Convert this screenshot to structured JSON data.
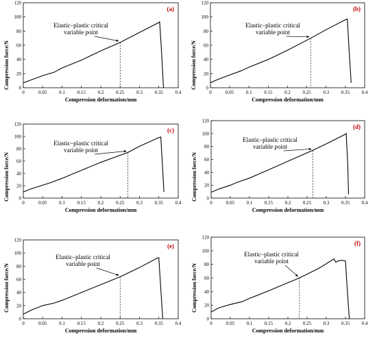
{
  "chart_data": [
    {
      "type": "line",
      "panel_label": "(a)",
      "xlabel": "Compression deformation/mm",
      "ylabel": "Compression force/N",
      "xlim": [
        0,
        0.4
      ],
      "ylim": [
        0,
        120
      ],
      "xticks": [
        "0",
        "0.05",
        "0.1",
        "0.15",
        "0.2",
        "0.25",
        "0.3",
        "0.35",
        "0.4"
      ],
      "yticks": [
        "0",
        "20",
        "40",
        "60",
        "80",
        "100",
        "120"
      ],
      "annotation": {
        "line1": "Elastic–plastic critical",
        "line2": "variable point",
        "x": 0.25,
        "y": 64
      },
      "x": [
        0,
        0.02,
        0.05,
        0.08,
        0.1,
        0.15,
        0.2,
        0.25,
        0.3,
        0.35,
        0.352,
        0.356,
        0.36,
        0.362
      ],
      "y": [
        7,
        11,
        17,
        22,
        28,
        39,
        52,
        64,
        78,
        92,
        93,
        60,
        20,
        0
      ]
    },
    {
      "type": "line",
      "panel_label": "(b)",
      "xlabel": "Compression deformation/mm",
      "ylabel": "Compression force/N",
      "xlim": [
        0,
        0.4
      ],
      "ylim": [
        0,
        120
      ],
      "xticks": [
        "0",
        "0.05",
        "0.1",
        "0.15",
        "0.2",
        "0.25",
        "0.3",
        "0.35",
        "0.4"
      ],
      "yticks": [
        "0",
        "20",
        "40",
        "60",
        "80",
        "100",
        "120"
      ],
      "annotation": {
        "line1": "Elastic–plastic critical",
        "line2": "variable point",
        "x": 0.26,
        "y": 70
      },
      "x": [
        0,
        0.02,
        0.05,
        0.08,
        0.1,
        0.15,
        0.2,
        0.26,
        0.3,
        0.35,
        0.355,
        0.36,
        0.365
      ],
      "y": [
        7,
        12,
        18,
        24,
        29,
        40,
        53,
        70,
        82,
        96,
        97,
        50,
        7
      ]
    },
    {
      "type": "line",
      "panel_label": "(c)",
      "xlabel": "Compression deformation/mm",
      "ylabel": "Compression force/N",
      "xlim": [
        0,
        0.4
      ],
      "ylim": [
        0,
        120
      ],
      "xticks": [
        "0",
        "0.05",
        "0.1",
        "0.15",
        "0.2",
        "0.25",
        "0.3",
        "0.35",
        "0.4"
      ],
      "yticks": [
        "0",
        "20",
        "40",
        "60",
        "80",
        "100",
        "120"
      ],
      "annotation": {
        "line1": "Elastic–plastic critical",
        "line2": "variable point",
        "x": 0.27,
        "y": 74
      },
      "x": [
        0,
        0.02,
        0.05,
        0.07,
        0.1,
        0.15,
        0.2,
        0.27,
        0.3,
        0.35,
        0.355,
        0.36,
        0.363
      ],
      "y": [
        10,
        15,
        21,
        25,
        32,
        45,
        58,
        74,
        84,
        98,
        99,
        45,
        10
      ]
    },
    {
      "type": "line",
      "panel_label": "(d)",
      "xlabel": "Compression deformation/mm",
      "ylabel": "Compression force/N",
      "xlim": [
        0,
        0.4
      ],
      "ylim": [
        0,
        120
      ],
      "xticks": [
        "0",
        "0.05",
        "0.1",
        "0.15",
        "0.2",
        "0.25",
        "0.3",
        "0.35",
        "0.4"
      ],
      "yticks": [
        "0",
        "20",
        "40",
        "60",
        "80",
        "100",
        "120"
      ],
      "annotation": {
        "line1": "Elastic–plastic critical",
        "line2": "variable point",
        "x": 0.265,
        "y": 74
      },
      "x": [
        0,
        0.02,
        0.05,
        0.07,
        0.1,
        0.15,
        0.2,
        0.265,
        0.3,
        0.35,
        0.352,
        0.356,
        0.358
      ],
      "y": [
        9,
        14,
        20,
        25,
        31,
        44,
        57,
        74,
        84,
        99,
        100,
        50,
        6
      ]
    },
    {
      "type": "line",
      "panel_label": "(e)",
      "xlabel": "Compression deformation/mm",
      "ylabel": "Compression force/N",
      "xlim": [
        0,
        0.4
      ],
      "ylim": [
        0,
        120
      ],
      "xticks": [
        "0",
        "0.05",
        "0.1",
        "0.15",
        "0.2",
        "0.25",
        "0.3",
        "0.35",
        "0.4"
      ],
      "yticks": [
        "0",
        "20",
        "40",
        "60",
        "80",
        "100",
        "120"
      ],
      "annotation": {
        "line1": "Elastic–plastic critical",
        "line2": "variable point",
        "x": 0.25,
        "y": 64
      },
      "x": [
        0,
        0.02,
        0.05,
        0.08,
        0.1,
        0.15,
        0.2,
        0.25,
        0.3,
        0.345,
        0.35,
        0.355,
        0.36
      ],
      "y": [
        7,
        13,
        20,
        24,
        28,
        40,
        52,
        64,
        78,
        92,
        93,
        45,
        0
      ]
    },
    {
      "type": "line",
      "panel_label": "(f)",
      "xlabel": "Compression deformation/mm",
      "ylabel": "Compression force/N",
      "xlim": [
        0,
        0.4
      ],
      "ylim": [
        0,
        120
      ],
      "xticks": [
        "0",
        "0.05",
        "0.1",
        "0.15",
        "0.2",
        "0.25",
        "0.3",
        "0.35",
        "0.4"
      ],
      "yticks": [
        "0",
        "20",
        "40",
        "60",
        "80",
        "100",
        "120"
      ],
      "annotation": {
        "line1": "Elastic–plastic critical",
        "line2": "variable point",
        "x": 0.23,
        "y": 60
      },
      "x": [
        0,
        0.02,
        0.05,
        0.08,
        0.1,
        0.15,
        0.2,
        0.23,
        0.28,
        0.32,
        0.325,
        0.33,
        0.34,
        0.35,
        0.355,
        0.36
      ],
      "y": [
        10,
        16,
        21,
        25,
        30,
        41,
        53,
        60,
        74,
        88,
        83,
        85,
        86,
        85,
        40,
        0
      ]
    }
  ]
}
